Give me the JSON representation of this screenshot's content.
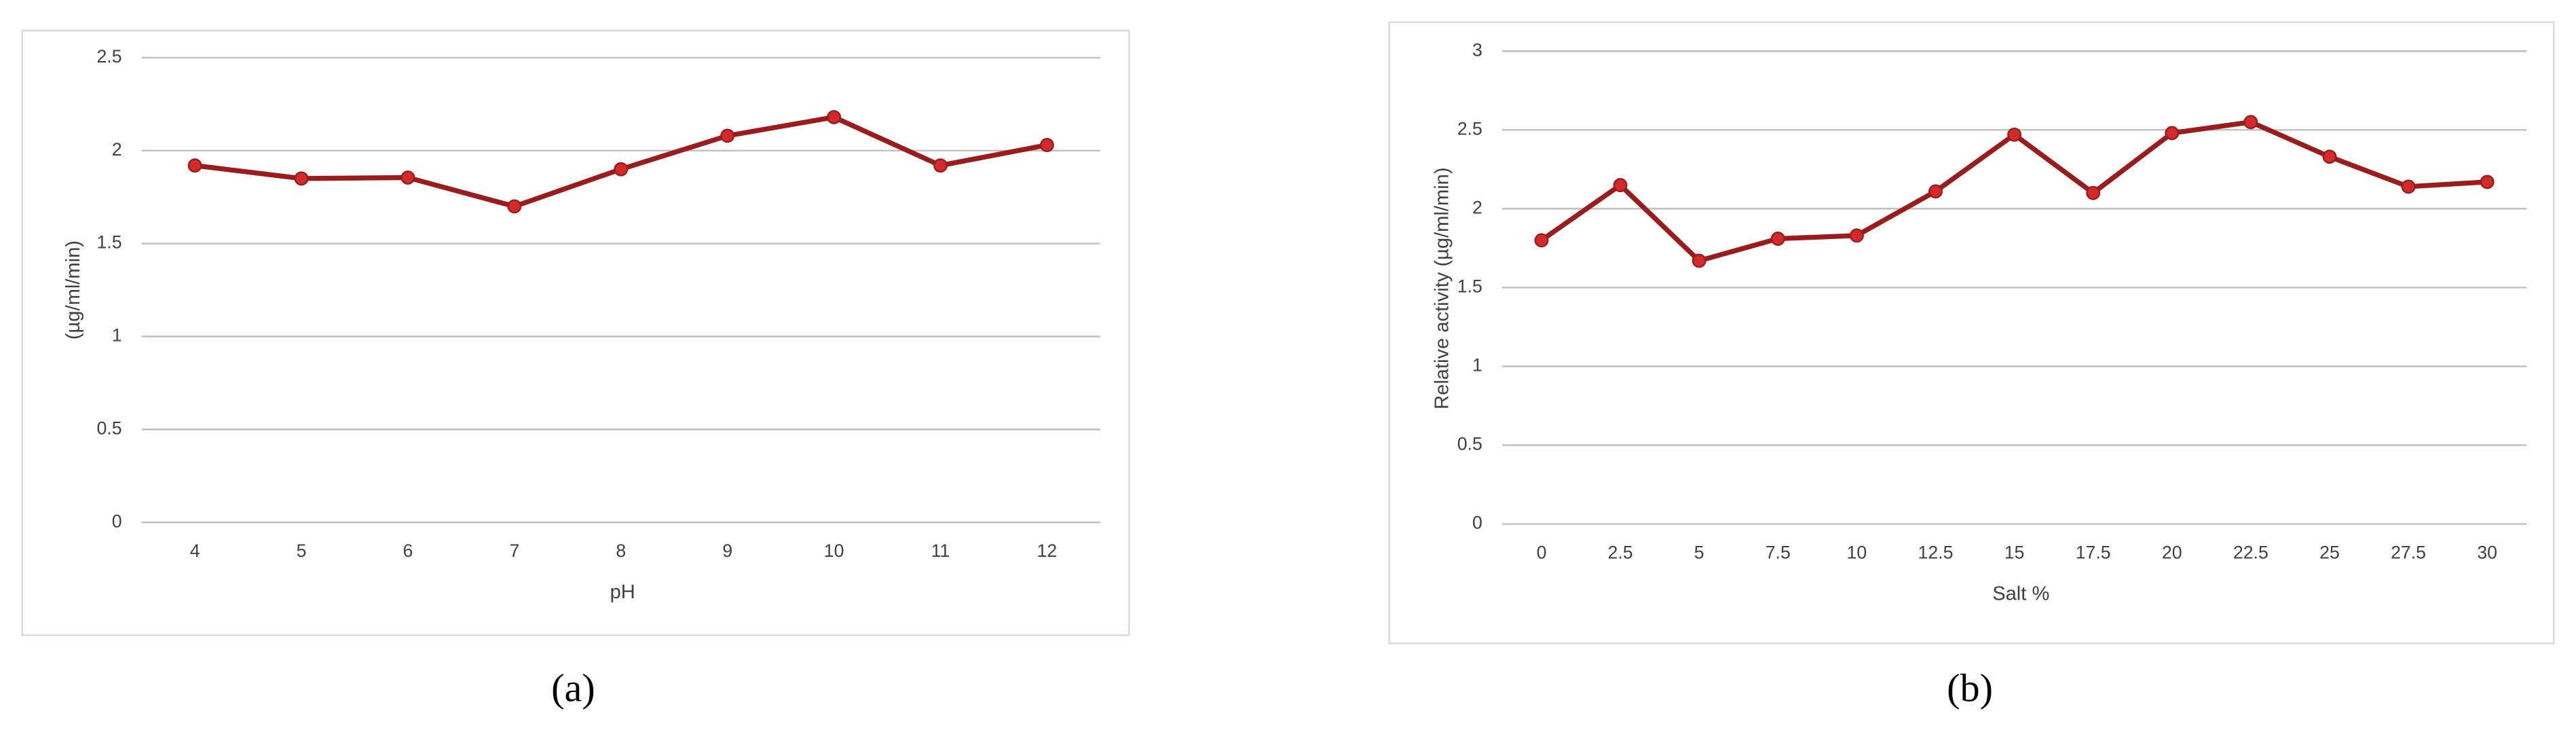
{
  "chart_data": [
    {
      "type": "line",
      "caption": "(a)",
      "y_label": "(µg/ml/min)",
      "x_label": "pH",
      "categories": [
        "4",
        "5",
        "6",
        "7",
        "8",
        "9",
        "10",
        "11",
        "12"
      ],
      "values": [
        1.92,
        1.85,
        1.855,
        1.7,
        1.9,
        2.08,
        2.18,
        1.92,
        2.03
      ],
      "color": "#9b1c1c",
      "marker_color": "#d42a2a",
      "ylim": [
        0,
        2.5
      ],
      "yticks": [
        0,
        0.5,
        1,
        1.5,
        2,
        2.5
      ],
      "grid": true
    },
    {
      "type": "line",
      "caption": "(b)",
      "y_label": "Relative activity (µg/ml/min)",
      "x_label": "Salt %",
      "categories": [
        "0",
        "2.5",
        "5",
        "7.5",
        "10",
        "12.5",
        "15",
        "17.5",
        "20",
        "22.5",
        "25",
        "27.5",
        "30"
      ],
      "values": [
        1.8,
        2.15,
        1.67,
        1.81,
        1.83,
        2.11,
        2.47,
        2.1,
        2.48,
        2.55,
        2.33,
        2.14,
        2.17
      ],
      "color": "#9b1c1c",
      "marker_color": "#d42a2a",
      "ylim": [
        0,
        3
      ],
      "yticks": [
        0,
        0.5,
        1,
        1.5,
        2,
        2.5,
        3
      ],
      "grid": true
    }
  ]
}
